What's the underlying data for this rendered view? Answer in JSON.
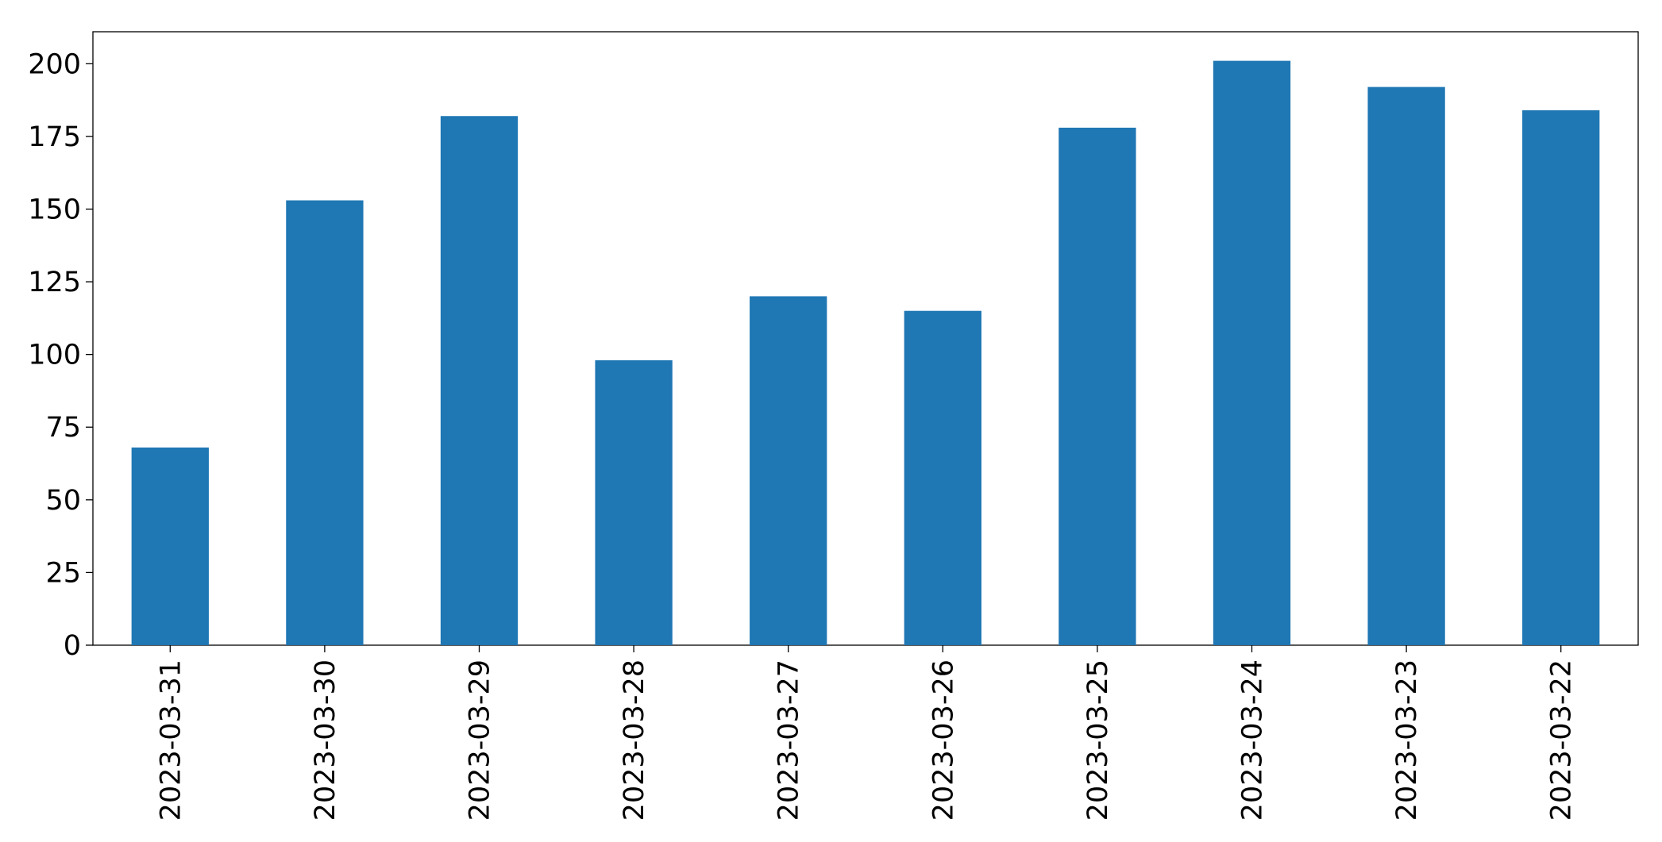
{
  "chart_data": {
    "type": "bar",
    "categories": [
      "2023-03-31",
      "2023-03-30",
      "2023-03-29",
      "2023-03-28",
      "2023-03-27",
      "2023-03-26",
      "2023-03-25",
      "2023-03-24",
      "2023-03-23",
      "2023-03-22"
    ],
    "values": [
      68,
      153,
      182,
      98,
      120,
      115,
      178,
      201,
      192,
      184
    ],
    "color": "#1f77b4",
    "ylim": [
      0,
      211
    ],
    "yticks": [
      0,
      25,
      50,
      75,
      100,
      125,
      150,
      175,
      200
    ],
    "grid": false
  }
}
